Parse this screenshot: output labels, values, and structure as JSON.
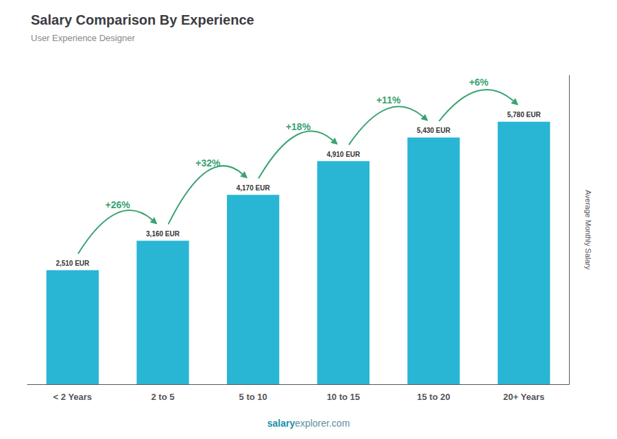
{
  "chart_data": {
    "type": "bar",
    "title": "Salary Comparison By Experience",
    "subtitle": "User Experience Designer",
    "categories": [
      "< 2 Years",
      "2 to 5",
      "5 to 10",
      "10 to 15",
      "15 to 20",
      "20+ Years"
    ],
    "values": [
      2510,
      3160,
      4170,
      4910,
      5430,
      5780
    ],
    "value_labels": [
      "2,510 EUR",
      "3,160 EUR",
      "4,170 EUR",
      "4,910 EUR",
      "5,430 EUR",
      "5,780 EUR"
    ],
    "data_labels": true,
    "annotations": [
      "+26%",
      "+32%",
      "+18%",
      "+11%",
      "+6%"
    ],
    "ylabel": "Average Monthly Salary",
    "footer": [
      "salary",
      "explorer.com"
    ],
    "color": "#29b6d4",
    "ylim": [
      0,
      6800
    ],
    "grid": false,
    "tick_labels": "x"
  }
}
